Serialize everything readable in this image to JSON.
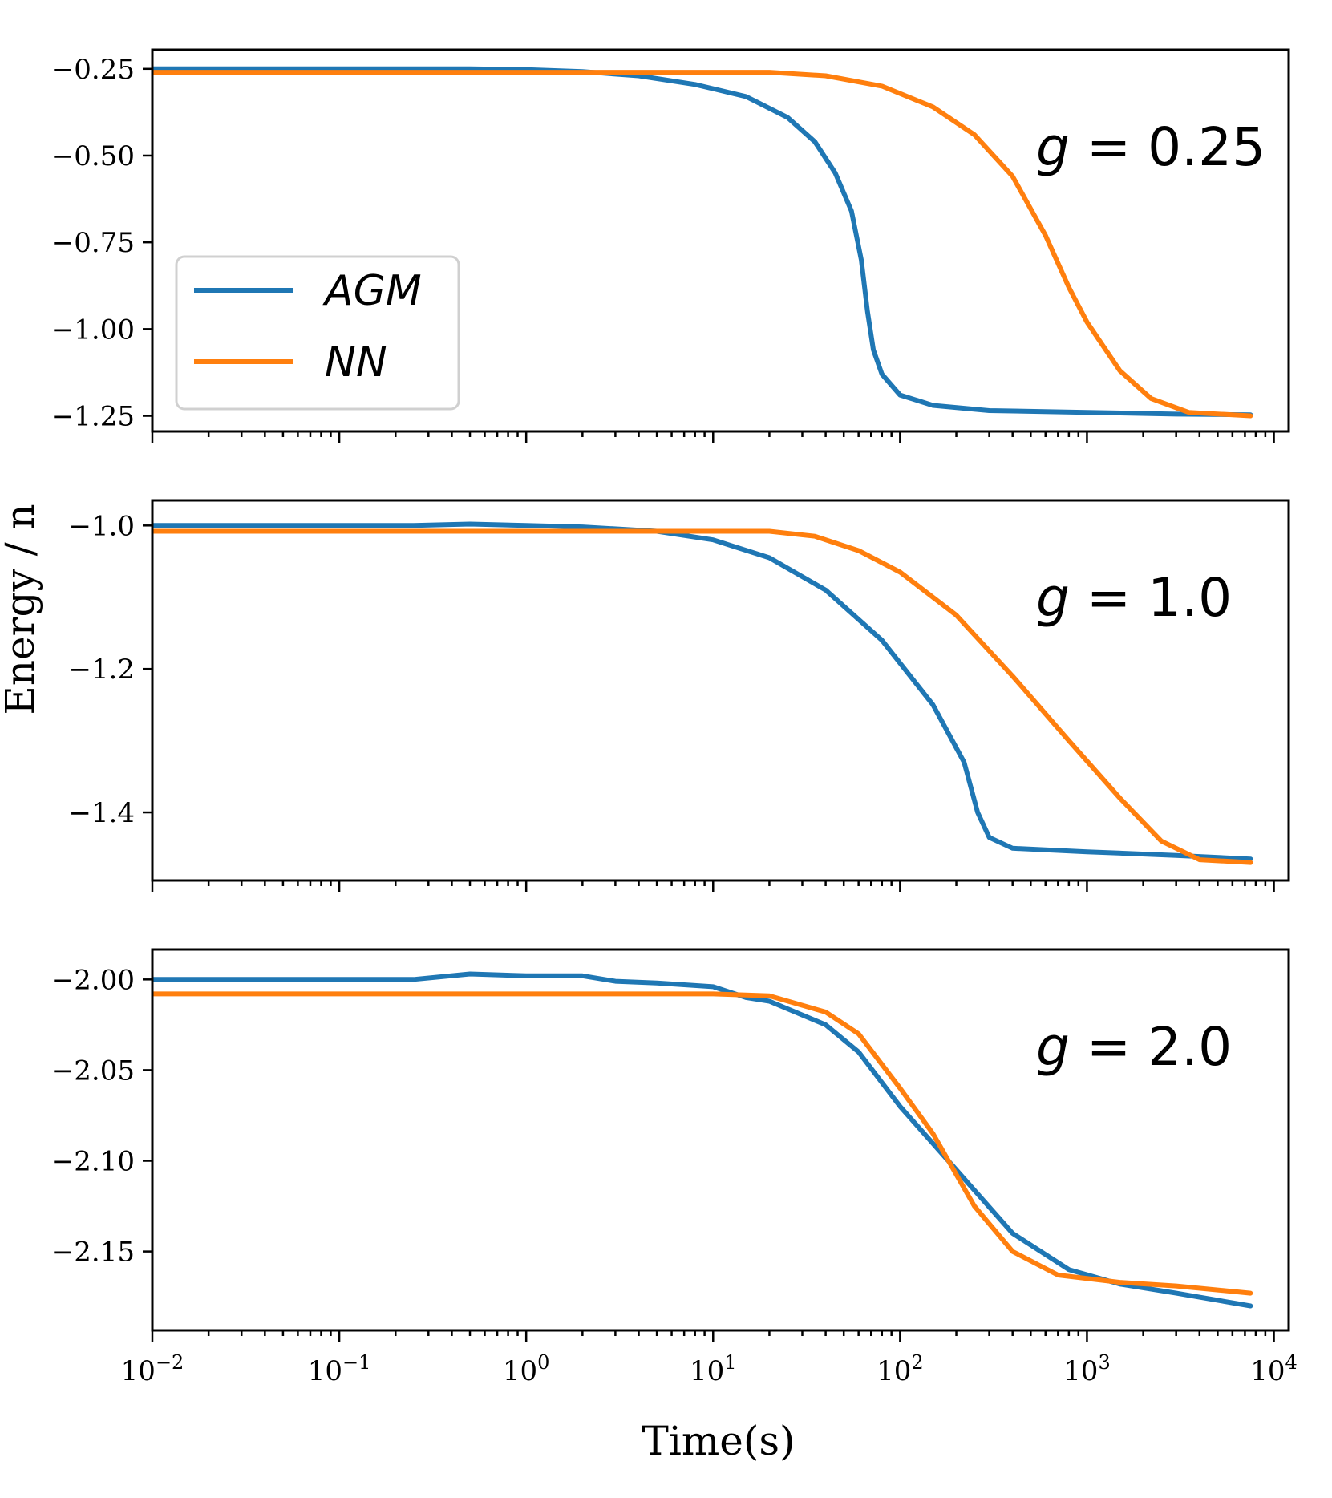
{
  "chart_data": {
    "type": "line",
    "xlabel": "Time(s)",
    "ylabel": "Energy / n",
    "xscale": "log",
    "xlim": [
      0.01,
      12000
    ],
    "xticks": [
      {
        "value": 0.01,
        "base": "10",
        "exp": "−2"
      },
      {
        "value": 0.1,
        "base": "10",
        "exp": "−1"
      },
      {
        "value": 1,
        "base": "10",
        "exp": "0"
      },
      {
        "value": 10,
        "base": "10",
        "exp": "1"
      },
      {
        "value": 100,
        "base": "10",
        "exp": "2"
      },
      {
        "value": 1000,
        "base": "10",
        "exp": "3"
      },
      {
        "value": 10000,
        "base": "10",
        "exp": "4"
      }
    ],
    "colors": {
      "AGM": "#1f77b4",
      "NN": "#ff7f0e"
    },
    "legend": {
      "location": "center-left of top panel",
      "entries": [
        "AGM",
        "NN"
      ]
    },
    "panels": [
      {
        "annotation": {
          "symbol": "g",
          "text": " = 0.25"
        },
        "ylim": [
          -1.295,
          -0.195
        ],
        "yticks": [
          {
            "value": -0.25,
            "label": "−0.25"
          },
          {
            "value": -0.5,
            "label": "−0.50"
          },
          {
            "value": -0.75,
            "label": "−0.75"
          },
          {
            "value": -1.0,
            "label": "−1.00"
          },
          {
            "value": -1.25,
            "label": "−1.25"
          }
        ],
        "series": [
          {
            "name": "AGM",
            "points": [
              [
                0.01,
                -0.25
              ],
              [
                0.1,
                -0.25
              ],
              [
                0.5,
                -0.25
              ],
              [
                1,
                -0.252
              ],
              [
                2,
                -0.258
              ],
              [
                4,
                -0.27
              ],
              [
                8,
                -0.295
              ],
              [
                15,
                -0.33
              ],
              [
                25,
                -0.39
              ],
              [
                35,
                -0.46
              ],
              [
                45,
                -0.55
              ],
              [
                55,
                -0.66
              ],
              [
                62,
                -0.8
              ],
              [
                67,
                -0.95
              ],
              [
                72,
                -1.06
              ],
              [
                80,
                -1.13
              ],
              [
                100,
                -1.19
              ],
              [
                150,
                -1.22
              ],
              [
                300,
                -1.235
              ],
              [
                1000,
                -1.24
              ],
              [
                3000,
                -1.245
              ],
              [
                7500,
                -1.247
              ]
            ]
          },
          {
            "name": "NN",
            "points": [
              [
                0.01,
                -0.26
              ],
              [
                1,
                -0.26
              ],
              [
                20,
                -0.26
              ],
              [
                40,
                -0.27
              ],
              [
                80,
                -0.3
              ],
              [
                150,
                -0.36
              ],
              [
                250,
                -0.44
              ],
              [
                400,
                -0.56
              ],
              [
                600,
                -0.73
              ],
              [
                800,
                -0.88
              ],
              [
                1000,
                -0.98
              ],
              [
                1500,
                -1.12
              ],
              [
                2200,
                -1.2
              ],
              [
                3500,
                -1.24
              ],
              [
                7500,
                -1.25
              ]
            ]
          }
        ]
      },
      {
        "annotation": {
          "symbol": "g",
          "text": " = 1.0"
        },
        "ylim": [
          -1.495,
          -0.965
        ],
        "yticks": [
          {
            "value": -1.0,
            "label": "−1.0"
          },
          {
            "value": -1.2,
            "label": "−1.2"
          },
          {
            "value": -1.4,
            "label": "−1.4"
          }
        ],
        "series": [
          {
            "name": "AGM",
            "points": [
              [
                0.01,
                -1.0
              ],
              [
                0.25,
                -1.0
              ],
              [
                0.5,
                -0.998
              ],
              [
                1,
                -1.0
              ],
              [
                2,
                -1.002
              ],
              [
                5,
                -1.008
              ],
              [
                10,
                -1.02
              ],
              [
                20,
                -1.045
              ],
              [
                40,
                -1.09
              ],
              [
                80,
                -1.16
              ],
              [
                150,
                -1.25
              ],
              [
                220,
                -1.33
              ],
              [
                260,
                -1.4
              ],
              [
                300,
                -1.435
              ],
              [
                400,
                -1.45
              ],
              [
                1000,
                -1.455
              ],
              [
                3000,
                -1.46
              ],
              [
                7500,
                -1.465
              ]
            ]
          },
          {
            "name": "NN",
            "points": [
              [
                0.01,
                -1.008
              ],
              [
                20,
                -1.008
              ],
              [
                35,
                -1.015
              ],
              [
                60,
                -1.035
              ],
              [
                100,
                -1.065
              ],
              [
                200,
                -1.125
              ],
              [
                400,
                -1.21
              ],
              [
                800,
                -1.3
              ],
              [
                1500,
                -1.38
              ],
              [
                2500,
                -1.44
              ],
              [
                4000,
                -1.466
              ],
              [
                7500,
                -1.47
              ]
            ]
          }
        ]
      },
      {
        "annotation": {
          "symbol": "g",
          "text": " = 2.0"
        },
        "ylim": [
          -2.1935,
          -1.9835
        ],
        "yticks": [
          {
            "value": -2.0,
            "label": "−2.00"
          },
          {
            "value": -2.05,
            "label": "−2.05"
          },
          {
            "value": -2.1,
            "label": "−2.10"
          },
          {
            "value": -2.15,
            "label": "−2.15"
          }
        ],
        "series": [
          {
            "name": "AGM",
            "points": [
              [
                0.01,
                -2.0
              ],
              [
                0.25,
                -2.0
              ],
              [
                0.5,
                -1.997
              ],
              [
                1,
                -1.998
              ],
              [
                2,
                -1.998
              ],
              [
                3,
                -2.001
              ],
              [
                5,
                -2.002
              ],
              [
                10,
                -2.004
              ],
              [
                15,
                -2.01
              ],
              [
                20,
                -2.012
              ],
              [
                40,
                -2.025
              ],
              [
                60,
                -2.04
              ],
              [
                100,
                -2.07
              ],
              [
                200,
                -2.105
              ],
              [
                400,
                -2.14
              ],
              [
                800,
                -2.16
              ],
              [
                1500,
                -2.168
              ],
              [
                3000,
                -2.173
              ],
              [
                7500,
                -2.18
              ]
            ]
          },
          {
            "name": "NN",
            "points": [
              [
                0.01,
                -2.008
              ],
              [
                10,
                -2.008
              ],
              [
                20,
                -2.009
              ],
              [
                40,
                -2.018
              ],
              [
                60,
                -2.03
              ],
              [
                100,
                -2.06
              ],
              [
                150,
                -2.085
              ],
              [
                250,
                -2.125
              ],
              [
                400,
                -2.15
              ],
              [
                700,
                -2.163
              ],
              [
                1500,
                -2.167
              ],
              [
                3000,
                -2.169
              ],
              [
                7500,
                -2.173
              ]
            ]
          }
        ]
      }
    ]
  }
}
